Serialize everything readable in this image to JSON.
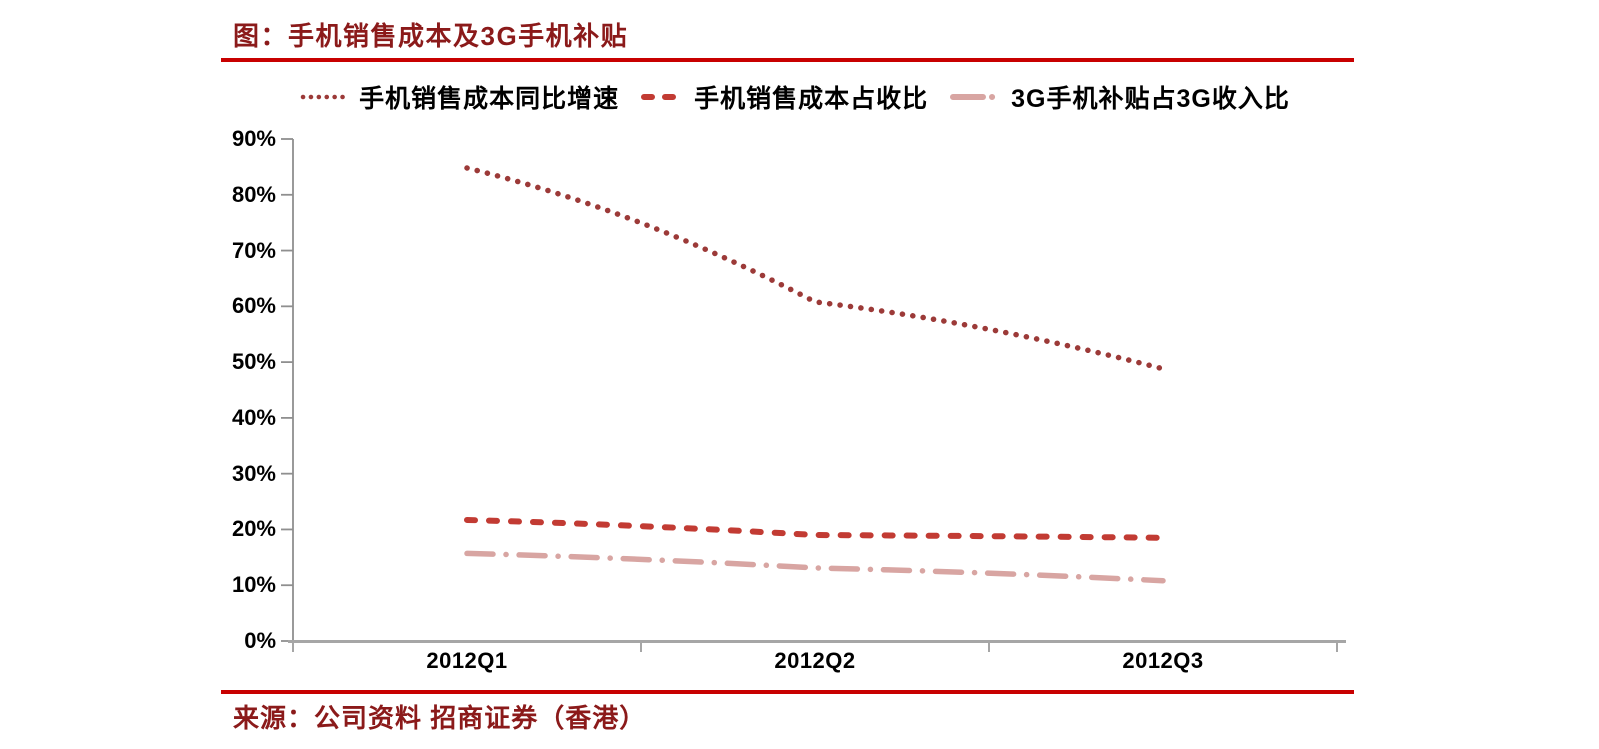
{
  "header": {
    "title": "图：手机销售成本及3G手机补贴"
  },
  "footer": {
    "source": "来源：公司资料 招商证券（香港）"
  },
  "colors": {
    "rule_red": "#C80000",
    "dark_red_text": "#8B1A1A",
    "x_axis_gray": "#A6A6A6",
    "y_axis_gray": "#8F8F8F"
  },
  "chart_data": {
    "type": "line",
    "categories": [
      "2012Q1",
      "2012Q2",
      "2012Q3"
    ],
    "series": [
      {
        "name": "手机销售成本同比增速",
        "line_style": "dotted",
        "color": "#9C3A38",
        "values": [
          84.8,
          60.8,
          48.8
        ]
      },
      {
        "name": "手机销售成本占收比",
        "line_style": "dashed",
        "color": "#C23B33",
        "values": [
          21.7,
          19.0,
          18.5
        ]
      },
      {
        "name": "3G手机补贴占3G收入比",
        "line_style": "dash-dot",
        "color": "#D8A5A2",
        "values": [
          15.7,
          13.1,
          10.8
        ]
      }
    ],
    "y_tick_labels": [
      "90%",
      "80%",
      "70%",
      "60%",
      "50%",
      "40%",
      "30%",
      "20%",
      "10%",
      "0%"
    ],
    "ylim": [
      0,
      90
    ],
    "ytick_step": 10,
    "xlabel": "",
    "ylabel": "",
    "grid": false,
    "legend_position": "top"
  }
}
